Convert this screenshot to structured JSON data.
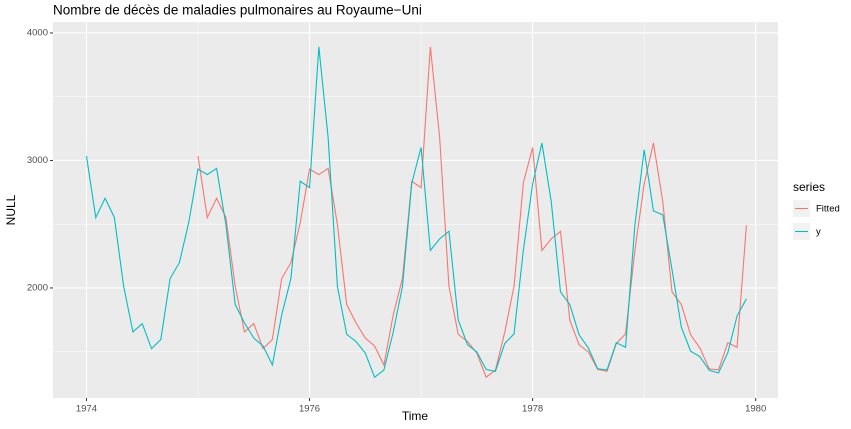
{
  "chart_data": {
    "type": "line",
    "title": "Nombre de décès de maladies pulmonaires au Royaume−Uni",
    "x_label": "Time",
    "y_label": "NULL",
    "x": [
      1974,
      1974.0833,
      1974.1667,
      1974.25,
      1974.3333,
      1974.4167,
      1974.5,
      1974.5833,
      1974.6667,
      1974.75,
      1974.8333,
      1974.9167,
      1975,
      1975.0833,
      1975.1667,
      1975.25,
      1975.3333,
      1975.4167,
      1975.5,
      1975.5833,
      1975.6667,
      1975.75,
      1975.8333,
      1975.9167,
      1976,
      1976.0833,
      1976.1667,
      1976.25,
      1976.3333,
      1976.4167,
      1976.5,
      1976.5833,
      1976.6667,
      1976.75,
      1976.8333,
      1976.9167,
      1977,
      1977.0833,
      1977.1667,
      1977.25,
      1977.3333,
      1977.4167,
      1977.5,
      1977.5833,
      1977.6667,
      1977.75,
      1977.8333,
      1977.9167,
      1978,
      1978.0833,
      1978.1667,
      1978.25,
      1978.3333,
      1978.4167,
      1978.5,
      1978.5833,
      1978.6667,
      1978.75,
      1978.8333,
      1978.9167,
      1979,
      1979.0833,
      1979.1667,
      1979.25,
      1979.3333,
      1979.4167,
      1979.5,
      1979.5833,
      1979.6667,
      1979.75,
      1979.8333,
      1979.9167
    ],
    "series": [
      {
        "name": "Fitted",
        "color": "#F8766D",
        "values": [
          null,
          null,
          null,
          null,
          null,
          null,
          null,
          null,
          null,
          null,
          null,
          null,
          3035,
          2552,
          2704,
          2554,
          2014,
          1655,
          1721,
          1524,
          1596,
          2074,
          2199,
          2512,
          2933,
          2889,
          2938,
          2497,
          1870,
          1726,
          1607,
          1545,
          1396,
          1787,
          2076,
          2837,
          2787,
          3891,
          3179,
          2011,
          1636,
          1580,
          1489,
          1300,
          1356,
          1653,
          2013,
          2823,
          3102,
          2294,
          2385,
          2444,
          1748,
          1554,
          1498,
          1361,
          1346,
          1564,
          1640,
          2293,
          2815,
          3137,
          2679,
          1969,
          1870,
          1633,
          1529,
          1366,
          1357,
          1570,
          1535,
          2491
        ]
      },
      {
        "name": "y",
        "color": "#00BFC4",
        "values": [
          3035,
          2552,
          2704,
          2554,
          2014,
          1655,
          1721,
          1524,
          1596,
          2074,
          2199,
          2512,
          2933,
          2889,
          2938,
          2497,
          1870,
          1726,
          1607,
          1545,
          1396,
          1787,
          2076,
          2837,
          2787,
          3891,
          3179,
          2011,
          1636,
          1580,
          1489,
          1300,
          1356,
          1653,
          2013,
          2823,
          3102,
          2294,
          2385,
          2444,
          1748,
          1554,
          1498,
          1361,
          1346,
          1564,
          1640,
          2293,
          2815,
          3137,
          2679,
          1969,
          1870,
          1633,
          1529,
          1366,
          1357,
          1570,
          1535,
          2491,
          3084,
          2605,
          2573,
          2143,
          1693,
          1504,
          1461,
          1354,
          1333,
          1492,
          1781,
          1915
        ]
      }
    ],
    "legend_title": "series",
    "legend": "right",
    "xlim": [
      1973.7,
      1980.2
    ],
    "xticks": [
      1974,
      1976,
      1978,
      1980
    ],
    "xminor": [
      1975,
      1977,
      1979
    ],
    "ylim": [
      1137,
      4086
    ],
    "yticks": [
      2000,
      3000,
      4000
    ],
    "yminor": [
      1500,
      2500,
      3500
    ],
    "grid": true
  }
}
